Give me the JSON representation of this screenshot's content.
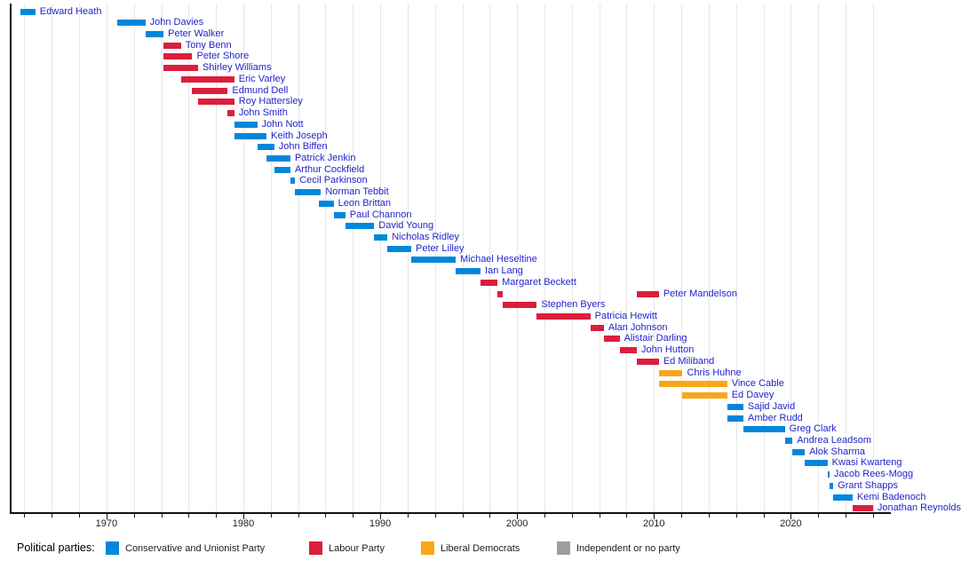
{
  "chart_data": {
    "type": "timeline",
    "title": "",
    "axis": {
      "orientation": "horizontal-years",
      "range": [
        1963.0,
        2027.3
      ],
      "major_ticks": [
        1970,
        1980,
        1990,
        2000,
        2010,
        2020
      ],
      "minor_tick_step_years": 2,
      "grid": "vertical, every 2 years, light gray"
    },
    "party_colors": {
      "con": "#0087DC",
      "lab": "#DC1E3C",
      "ld": "#FAA61A",
      "ind": "#9E9E9E"
    },
    "label_color": "#2323CC",
    "entries": [
      {
        "name": "Edward Heath",
        "party": "con",
        "bars": [
          [
            1963.7,
            1964.8
          ]
        ]
      },
      {
        "name": "John Davies",
        "party": "con",
        "bars": [
          [
            1970.79,
            1972.84
          ]
        ]
      },
      {
        "name": "Peter Walker",
        "party": "con",
        "bars": [
          [
            1972.84,
            1974.17
          ]
        ]
      },
      {
        "name": "Tony Benn",
        "party": "lab",
        "bars": [
          [
            1974.17,
            1975.44
          ]
        ]
      },
      {
        "name": "Peter Shore",
        "party": "lab",
        "bars": [
          [
            1974.17,
            1976.27
          ]
        ]
      },
      {
        "name": "Shirley Williams",
        "party": "lab",
        "bars": [
          [
            1974.17,
            1976.69
          ]
        ]
      },
      {
        "name": "Eric Varley",
        "party": "lab",
        "bars": [
          [
            1975.44,
            1979.34
          ]
        ]
      },
      {
        "name": "Edmund Dell",
        "party": "lab",
        "bars": [
          [
            1976.27,
            1978.86
          ]
        ]
      },
      {
        "name": "Roy Hattersley",
        "party": "lab",
        "bars": [
          [
            1976.69,
            1979.34
          ]
        ]
      },
      {
        "name": "John Smith",
        "party": "lab",
        "bars": [
          [
            1978.86,
            1979.34
          ]
        ]
      },
      {
        "name": "John Nott",
        "party": "con",
        "bars": [
          [
            1979.34,
            1981.01
          ]
        ]
      },
      {
        "name": "Keith Joseph",
        "party": "con",
        "bars": [
          [
            1979.34,
            1981.7
          ]
        ]
      },
      {
        "name": "John Biffen",
        "party": "con",
        "bars": [
          [
            1981.01,
            1982.26
          ]
        ]
      },
      {
        "name": "Patrick Jenkin",
        "party": "con",
        "bars": [
          [
            1981.7,
            1983.44
          ]
        ]
      },
      {
        "name": "Arthur Cockfield",
        "party": "con",
        "bars": [
          [
            1982.26,
            1983.44
          ]
        ]
      },
      {
        "name": "Cecil Parkinson",
        "party": "con",
        "bars": [
          [
            1983.44,
            1983.78
          ]
        ]
      },
      {
        "name": "Norman Tebbit",
        "party": "con",
        "bars": [
          [
            1983.78,
            1985.67
          ]
        ]
      },
      {
        "name": "Leon Brittan",
        "party": "con",
        "bars": [
          [
            1985.5,
            1986.6
          ]
        ]
      },
      {
        "name": "Paul Channon",
        "party": "con",
        "bars": [
          [
            1986.6,
            1987.45
          ]
        ]
      },
      {
        "name": "David Young",
        "party": "con",
        "bars": [
          [
            1987.45,
            1989.56
          ]
        ]
      },
      {
        "name": "Nicholas Ridley",
        "party": "con",
        "bars": [
          [
            1989.56,
            1990.53
          ]
        ]
      },
      {
        "name": "Peter Lilley",
        "party": "con",
        "bars": [
          [
            1990.53,
            1992.27
          ]
        ]
      },
      {
        "name": "Michael Heseltine",
        "party": "con",
        "bars": [
          [
            1992.27,
            1995.51
          ]
        ]
      },
      {
        "name": "Ian Lang",
        "party": "con",
        "bars": [
          [
            1995.51,
            1997.33
          ]
        ]
      },
      {
        "name": "Margaret Beckett",
        "party": "lab",
        "bars": [
          [
            1997.33,
            1998.57
          ]
        ]
      },
      {
        "name": "Peter Mandelson",
        "party": "lab",
        "bars": [
          [
            1998.57,
            1998.98
          ],
          [
            2008.75,
            2010.36
          ]
        ]
      },
      {
        "name": "Stephen Byers",
        "party": "lab",
        "bars": [
          [
            1998.98,
            2001.44
          ]
        ]
      },
      {
        "name": "Patricia Hewitt",
        "party": "lab",
        "bars": [
          [
            2001.44,
            2005.35
          ]
        ]
      },
      {
        "name": "Alan Johnson",
        "party": "lab",
        "bars": [
          [
            2005.35,
            2006.34
          ]
        ]
      },
      {
        "name": "Alistair Darling",
        "party": "lab",
        "bars": [
          [
            2006.34,
            2007.49
          ]
        ]
      },
      {
        "name": "John Hutton",
        "party": "lab",
        "bars": [
          [
            2007.49,
            2008.75
          ]
        ]
      },
      {
        "name": "Ed Miliband",
        "party": "lab",
        "bars": [
          [
            2008.75,
            2010.36
          ]
        ]
      },
      {
        "name": "Chris Huhne",
        "party": "ld",
        "bars": [
          [
            2010.36,
            2012.09
          ]
        ]
      },
      {
        "name": "Vince Cable",
        "party": "ld",
        "bars": [
          [
            2010.36,
            2015.35
          ]
        ]
      },
      {
        "name": "Ed Davey",
        "party": "ld",
        "bars": [
          [
            2012.09,
            2015.35
          ]
        ]
      },
      {
        "name": "Sajid Javid",
        "party": "con",
        "bars": [
          [
            2015.36,
            2016.54
          ]
        ]
      },
      {
        "name": "Amber Rudd",
        "party": "con",
        "bars": [
          [
            2015.36,
            2016.54
          ]
        ]
      },
      {
        "name": "Greg Clark",
        "party": "con",
        "bars": [
          [
            2016.54,
            2019.56
          ]
        ]
      },
      {
        "name": "Andrea Leadsom",
        "party": "con",
        "bars": [
          [
            2019.56,
            2020.12
          ]
        ]
      },
      {
        "name": "Alok Sharma",
        "party": "con",
        "bars": [
          [
            2020.12,
            2021.02
          ]
        ]
      },
      {
        "name": "Kwasi Kwarteng",
        "party": "con",
        "bars": [
          [
            2021.02,
            2022.68
          ]
        ]
      },
      {
        "name": "Jacob Rees-Mogg",
        "party": "con",
        "bars": [
          [
            2022.68,
            2022.82
          ]
        ]
      },
      {
        "name": "Grant Shapps",
        "party": "con",
        "bars": [
          [
            2022.82,
            2023.1
          ]
        ]
      },
      {
        "name": "Kemi Badenoch",
        "party": "con",
        "bars": [
          [
            2023.1,
            2024.51
          ]
        ]
      },
      {
        "name": "Jonathan Reynolds",
        "party": "lab",
        "bars": [
          [
            2024.51,
            2026.0
          ]
        ]
      }
    ],
    "legend": {
      "title": "Political parties:",
      "items": [
        {
          "label": "Conservative and Unionist Party",
          "party": "con"
        },
        {
          "label": "Labour Party",
          "party": "lab"
        },
        {
          "label": "Liberal Democrats",
          "party": "ld"
        },
        {
          "label": "Independent or no party",
          "party": "ind"
        }
      ]
    }
  }
}
